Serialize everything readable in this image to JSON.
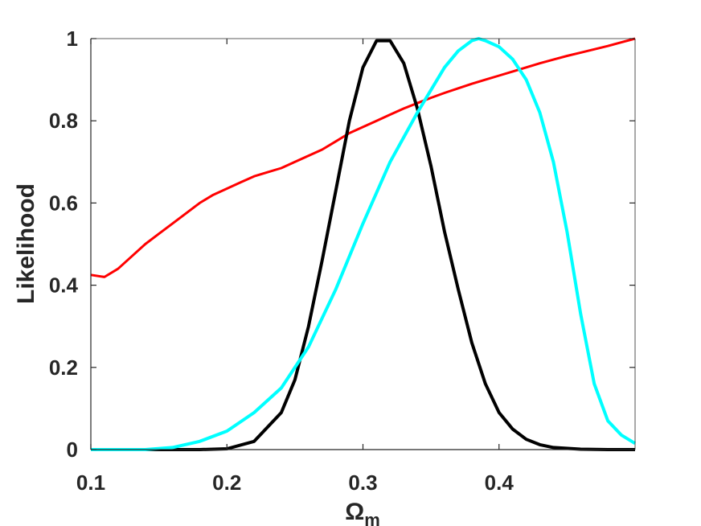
{
  "chart_data": {
    "type": "line",
    "title": "",
    "xlabel": "Ω",
    "xlabel_subscript": "m",
    "ylabel": "Likelihood",
    "xlim": [
      0.1,
      0.5
    ],
    "ylim": [
      0,
      1
    ],
    "xticks": [
      0.1,
      0.2,
      0.3,
      0.4
    ],
    "xtick_labels": [
      "0.1",
      "0.2",
      "0.3",
      "0.4"
    ],
    "yticks": [
      0,
      0.2,
      0.4,
      0.6,
      0.8,
      1
    ],
    "ytick_labels": [
      "0",
      "0.2",
      "0.4",
      "0.6",
      "0.8",
      "1"
    ],
    "grid": false,
    "legend": "none",
    "series": [
      {
        "color": "#ff0000",
        "x": [
          0.1,
          0.11,
          0.12,
          0.13,
          0.14,
          0.15,
          0.16,
          0.17,
          0.18,
          0.19,
          0.2,
          0.21,
          0.22,
          0.23,
          0.24,
          0.25,
          0.26,
          0.27,
          0.28,
          0.29,
          0.3,
          0.31,
          0.32,
          0.33,
          0.34,
          0.35,
          0.36,
          0.37,
          0.38,
          0.39,
          0.4,
          0.41,
          0.42,
          0.43,
          0.44,
          0.45,
          0.46,
          0.47,
          0.48,
          0.49,
          0.5
        ],
        "y": [
          0.425,
          0.42,
          0.44,
          0.47,
          0.5,
          0.525,
          0.55,
          0.575,
          0.6,
          0.62,
          0.635,
          0.65,
          0.665,
          0.675,
          0.685,
          0.7,
          0.715,
          0.73,
          0.75,
          0.77,
          0.785,
          0.8,
          0.815,
          0.83,
          0.843,
          0.856,
          0.868,
          0.879,
          0.89,
          0.9,
          0.91,
          0.92,
          0.93,
          0.94,
          0.949,
          0.958,
          0.966,
          0.974,
          0.982,
          0.991,
          1.0
        ]
      },
      {
        "color": "#000000",
        "x": [
          0.1,
          0.18,
          0.2,
          0.22,
          0.24,
          0.25,
          0.26,
          0.27,
          0.28,
          0.29,
          0.3,
          0.31,
          0.32,
          0.33,
          0.34,
          0.35,
          0.36,
          0.37,
          0.38,
          0.39,
          0.4,
          0.41,
          0.42,
          0.43,
          0.44,
          0.46,
          0.48,
          0.5
        ],
        "y": [
          0,
          0,
          0.002,
          0.02,
          0.09,
          0.17,
          0.3,
          0.46,
          0.63,
          0.8,
          0.93,
          0.995,
          0.995,
          0.94,
          0.83,
          0.69,
          0.53,
          0.39,
          0.26,
          0.16,
          0.09,
          0.05,
          0.025,
          0.012,
          0.005,
          0.001,
          0,
          0
        ]
      },
      {
        "color": "#00ffff",
        "x": [
          0.1,
          0.14,
          0.16,
          0.18,
          0.2,
          0.22,
          0.24,
          0.26,
          0.28,
          0.3,
          0.32,
          0.34,
          0.36,
          0.37,
          0.38,
          0.385,
          0.39,
          0.4,
          0.41,
          0.42,
          0.43,
          0.44,
          0.45,
          0.46,
          0.47,
          0.48,
          0.49,
          0.5
        ],
        "y": [
          0,
          0,
          0.005,
          0.02,
          0.045,
          0.09,
          0.15,
          0.25,
          0.39,
          0.55,
          0.7,
          0.82,
          0.93,
          0.97,
          0.995,
          1.0,
          0.995,
          0.98,
          0.95,
          0.9,
          0.82,
          0.7,
          0.53,
          0.33,
          0.16,
          0.07,
          0.035,
          0.015
        ]
      }
    ]
  }
}
